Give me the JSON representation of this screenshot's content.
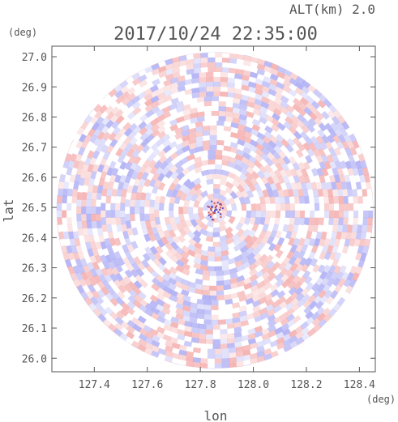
{
  "chart_data": {
    "type": "heatmap",
    "title": "2017/10/24 22:35:00",
    "altitude_label": "ALT(km) 2.0",
    "xlabel": "lon",
    "ylabel": "lat",
    "x_unit": "(deg)",
    "y_unit": "(deg)",
    "xlim": [
      127.24,
      128.46
    ],
    "ylim": [
      25.955,
      27.035
    ],
    "x_ticks": [
      127.4,
      127.6,
      127.8,
      128.0,
      128.2,
      128.4
    ],
    "x_tick_labels": [
      "127.4",
      "127.6",
      "127.8",
      "128.0",
      "128.2",
      "128.4"
    ],
    "y_ticks": [
      26.0,
      26.1,
      26.2,
      26.3,
      26.4,
      26.5,
      26.6,
      26.7,
      26.8,
      26.9,
      27.0
    ],
    "y_tick_labels": [
      "26.0",
      "26.1",
      "26.2",
      "26.3",
      "26.4",
      "26.5",
      "26.6",
      "26.7",
      "26.8",
      "26.9",
      "27.0"
    ],
    "radar_center": {
      "lon": 127.855,
      "lat": 26.49
    },
    "radar_radius_deg_lat": 0.525,
    "grid": false,
    "colors": {
      "positive": "#f08a8a",
      "negative": "#8a8af0",
      "axis": "#555555",
      "text": "#555555"
    }
  }
}
